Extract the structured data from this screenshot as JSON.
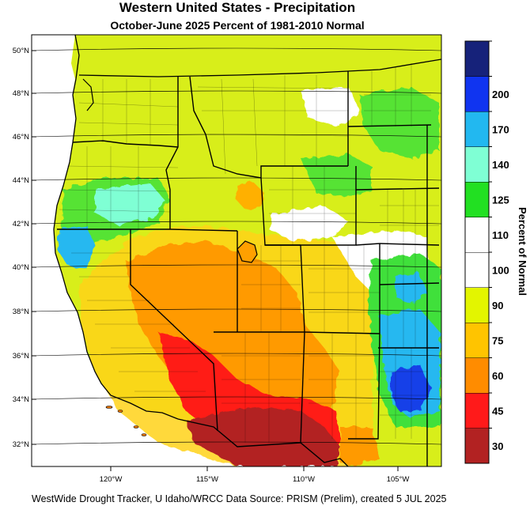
{
  "title": "Western United States - Precipitation",
  "subtitle": "October-June 2025  Percent of 1981-2010 Normal",
  "footer": "WestWide Drought Tracker, U Idaho/WRCC Data Source: PRISM (Prelim), created  5 JUL 2025",
  "legend": {
    "label": "Percent of Normal",
    "bins": [
      {
        "color": "#b22222",
        "label": "30"
      },
      {
        "color": "#ff1a1a",
        "label": "45"
      },
      {
        "color": "#ff8c00",
        "label": "60"
      },
      {
        "color": "#ffc400",
        "label": "75"
      },
      {
        "color": "#e3f500",
        "label": "90"
      },
      {
        "color": "#ffffff",
        "label": "100"
      },
      {
        "color": "#ffffff",
        "label": "110"
      },
      {
        "color": "#22e022",
        "label": "125"
      },
      {
        "color": "#7fffd4",
        "label": "140"
      },
      {
        "color": "#22b8f0",
        "label": "170"
      },
      {
        "color": "#1034f0",
        "label": "200"
      },
      {
        "color": "#16227a",
        "label": ""
      }
    ]
  },
  "axes": {
    "lat_labels": [
      "50°N",
      "48°N",
      "46°N",
      "44°N",
      "42°N",
      "40°N",
      "38°N",
      "36°N",
      "34°N",
      "32°N"
    ],
    "lon_labels": [
      "120°W",
      "115°W",
      "110°W",
      "105°W"
    ]
  }
}
